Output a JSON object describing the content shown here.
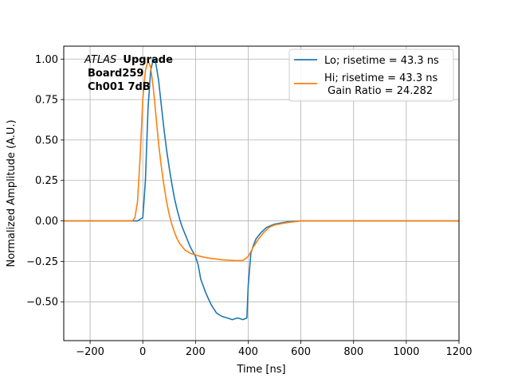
{
  "chart_data": {
    "type": "line",
    "xlabel": "Time [ns]",
    "ylabel": "Normalized Amplitude (A.U.)",
    "xlim": [
      -300,
      1200
    ],
    "ylim": [
      -0.74,
      1.08
    ],
    "xticks": [
      -200,
      0,
      200,
      400,
      600,
      800,
      1000,
      1200
    ],
    "xtick_labels": [
      "−200",
      "0",
      "200",
      "400",
      "600",
      "800",
      "1000",
      "1200"
    ],
    "yticks": [
      -0.5,
      -0.25,
      0.0,
      0.25,
      0.5,
      0.75,
      1.0
    ],
    "ytick_labels": [
      "−0.50",
      "−0.25",
      "0.00",
      "0.25",
      "0.50",
      "0.75",
      "1.00"
    ],
    "grid": true,
    "legend_position": "top-right",
    "annotation": {
      "italic": "ATLAS",
      "bold_lines": [
        "Upgrade",
        "Board259",
        "Ch001 7dB"
      ]
    },
    "series": [
      {
        "name": "Lo; risetime = 43.3 ns",
        "color": "#1f77b4",
        "x": [
          -300,
          -20,
          0,
          10,
          20,
          30,
          40,
          50,
          60,
          70,
          80,
          90,
          100,
          110,
          120,
          130,
          140,
          150,
          160,
          170,
          180,
          190,
          200,
          210,
          220,
          240,
          260,
          280,
          300,
          320,
          340,
          360,
          380,
          395,
          400,
          410,
          420,
          430,
          450,
          470,
          500,
          550,
          600,
          700,
          800,
          1200
        ],
        "y": [
          0.0,
          0.0,
          0.02,
          0.25,
          0.7,
          0.93,
          1.0,
          0.97,
          0.87,
          0.72,
          0.57,
          0.44,
          0.33,
          0.23,
          0.14,
          0.07,
          0.01,
          -0.04,
          -0.08,
          -0.12,
          -0.16,
          -0.19,
          -0.22,
          -0.27,
          -0.36,
          -0.45,
          -0.52,
          -0.57,
          -0.59,
          -0.6,
          -0.61,
          -0.6,
          -0.61,
          -0.6,
          -0.4,
          -0.2,
          -0.15,
          -0.11,
          -0.07,
          -0.04,
          -0.02,
          -0.005,
          0.0,
          0.0,
          0.0,
          0.0
        ]
      },
      {
        "name": "Hi; risetime = 43.3 ns\n Gain Ratio = 24.282",
        "color": "#ff7f0e",
        "x": [
          -300,
          -40,
          -30,
          -20,
          -10,
          0,
          10,
          20,
          30,
          40,
          50,
          60,
          70,
          80,
          90,
          100,
          110,
          120,
          130,
          140,
          150,
          160,
          180,
          200,
          220,
          250,
          300,
          350,
          380,
          400,
          420,
          440,
          460,
          480,
          500,
          550,
          600,
          700,
          800,
          1200
        ],
        "y": [
          0.0,
          0.0,
          0.02,
          0.12,
          0.4,
          0.75,
          0.93,
          0.99,
          0.95,
          0.82,
          0.65,
          0.48,
          0.34,
          0.22,
          0.12,
          0.04,
          -0.02,
          -0.07,
          -0.11,
          -0.14,
          -0.16,
          -0.18,
          -0.2,
          -0.21,
          -0.22,
          -0.23,
          -0.24,
          -0.245,
          -0.245,
          -0.22,
          -0.16,
          -0.11,
          -0.07,
          -0.04,
          -0.025,
          -0.01,
          0.0,
          0.0,
          0.0,
          0.0
        ]
      }
    ]
  }
}
